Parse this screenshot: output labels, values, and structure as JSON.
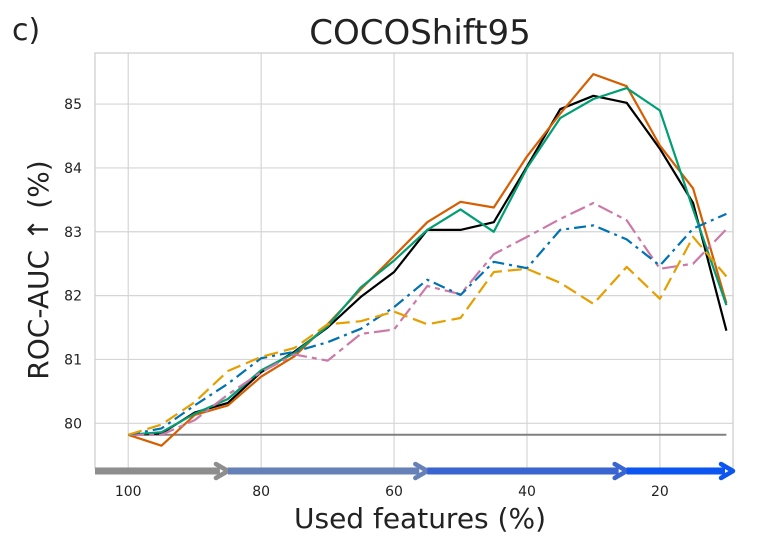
{
  "panel_label": "c)",
  "chart_data": {
    "type": "line",
    "title": "COCOShift95",
    "xlabel": "Used features (%)",
    "ylabel": "ROC-AUC ↑ (%)",
    "xlim": [
      105,
      9
    ],
    "ylim": [
      79.3,
      85.8
    ],
    "xticks": [
      100,
      80,
      60,
      40,
      20
    ],
    "yticks": [
      80,
      81,
      82,
      83,
      84,
      85
    ],
    "grid": true,
    "x": [
      100,
      95,
      90,
      85,
      80,
      75,
      70,
      65,
      60,
      55,
      50,
      45,
      40,
      35,
      30,
      25,
      20,
      15,
      10
    ],
    "baseline": {
      "y": 79.82,
      "color": "#808080"
    },
    "series": [
      {
        "color": "#000000",
        "dash": "solid",
        "values": [
          79.82,
          79.84,
          80.17,
          80.32,
          80.8,
          81.12,
          81.5,
          81.98,
          82.37,
          83.03,
          83.03,
          83.15,
          84.02,
          84.92,
          85.13,
          85.02,
          84.3,
          83.45,
          81.45
        ]
      },
      {
        "color": "#d55e00",
        "dash": "solid",
        "values": [
          79.82,
          79.65,
          80.13,
          80.28,
          80.73,
          81.05,
          81.55,
          82.1,
          82.62,
          83.15,
          83.47,
          83.38,
          84.18,
          84.85,
          85.47,
          85.28,
          84.35,
          83.68,
          81.88
        ]
      },
      {
        "color": "#009e73",
        "dash": "solid",
        "values": [
          79.82,
          79.86,
          80.15,
          80.38,
          80.83,
          81.1,
          81.52,
          82.13,
          82.55,
          83.03,
          83.35,
          83.0,
          84.0,
          84.78,
          85.08,
          85.25,
          84.9,
          83.35,
          81.85
        ]
      },
      {
        "color": "#cc79a7",
        "dash": "longshort",
        "values": [
          79.82,
          79.82,
          80.05,
          80.45,
          80.8,
          81.08,
          80.98,
          81.4,
          81.47,
          82.15,
          82.02,
          82.65,
          82.92,
          83.2,
          83.45,
          83.18,
          82.42,
          82.5,
          83.04
        ]
      },
      {
        "color": "#0072b2",
        "dash": "dashdot",
        "values": [
          79.82,
          79.92,
          80.28,
          80.62,
          81.02,
          81.12,
          81.27,
          81.48,
          81.82,
          82.25,
          82.01,
          82.53,
          82.43,
          83.03,
          83.1,
          82.88,
          82.47,
          83.05,
          83.28
        ]
      },
      {
        "color": "#e69f00",
        "dash": "dashed",
        "values": [
          79.82,
          79.98,
          80.33,
          80.82,
          81.04,
          81.18,
          81.55,
          81.6,
          81.75,
          81.55,
          81.65,
          82.37,
          82.42,
          82.2,
          81.87,
          82.45,
          81.95,
          82.92,
          82.3
        ]
      }
    ],
    "direction_arrow": {
      "segments": [
        {
          "from": 105,
          "to": 85,
          "color": "#8e8e8e"
        },
        {
          "from": 85,
          "to": 55,
          "color": "#6680b8"
        },
        {
          "from": 55,
          "to": 25,
          "color": "#3a64d0"
        },
        {
          "from": 25,
          "to": 9,
          "color": "#0c55f0"
        }
      ]
    }
  }
}
